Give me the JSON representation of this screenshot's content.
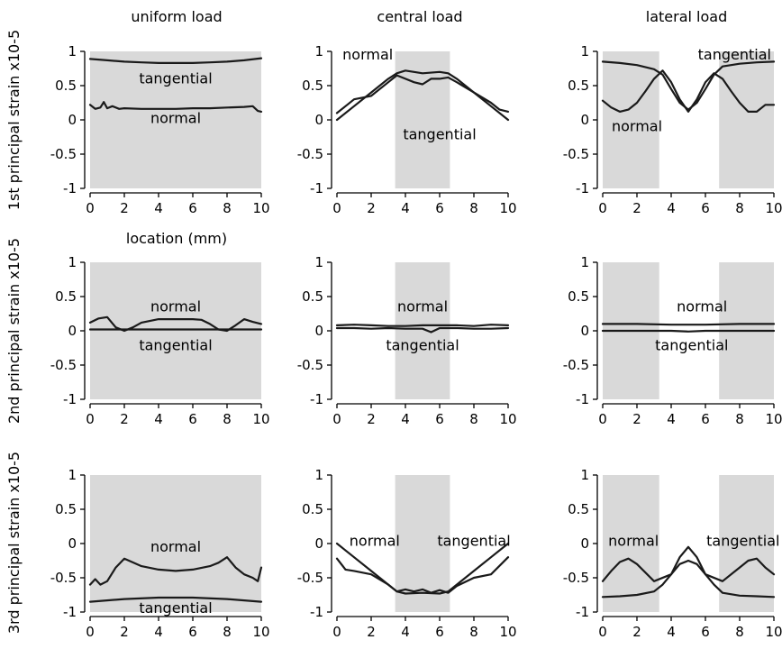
{
  "figure": {
    "column_titles": [
      "uniform load",
      "central load",
      "lateral load"
    ],
    "row_ylabels": [
      "1st principal strain x10-5",
      "2nd  principal strain x10-5",
      "3rd  principal strain x10-5"
    ],
    "xlabel_first_panel": "location (mm)"
  },
  "chart_data": [
    {
      "type": "line",
      "row": 0,
      "col": 0,
      "xlim": [
        0,
        10
      ],
      "ylim": [
        -1,
        1
      ],
      "xticks": [
        0,
        2,
        4,
        6,
        8,
        10
      ],
      "yticks": [
        -1,
        -0.5,
        0,
        0.5,
        1
      ],
      "shaded_regions": [
        [
          0,
          10
        ]
      ],
      "series": [
        {
          "name": "tangential",
          "x": [
            0,
            1,
            2,
            3,
            4,
            5,
            6,
            7,
            8,
            9,
            10
          ],
          "y": [
            0.89,
            0.87,
            0.85,
            0.84,
            0.83,
            0.83,
            0.83,
            0.84,
            0.85,
            0.87,
            0.9
          ]
        },
        {
          "name": "normal",
          "x": [
            0,
            0.3,
            0.6,
            0.8,
            1.0,
            1.3,
            1.7,
            2,
            3,
            4,
            5,
            6,
            7,
            8,
            9,
            9.5,
            9.8,
            10
          ],
          "y": [
            0.22,
            0.16,
            0.18,
            0.26,
            0.17,
            0.2,
            0.16,
            0.17,
            0.16,
            0.16,
            0.16,
            0.17,
            0.17,
            0.18,
            0.19,
            0.2,
            0.13,
            0.12
          ]
        }
      ],
      "labels": [
        {
          "text": "tangential",
          "x": 5,
          "y": 0.6
        },
        {
          "text": "normal",
          "x": 5,
          "y": 0.02
        }
      ]
    },
    {
      "type": "line",
      "row": 0,
      "col": 1,
      "xlim": [
        0,
        10
      ],
      "ylim": [
        -1,
        1
      ],
      "xticks": [
        0,
        2,
        4,
        6,
        8,
        10
      ],
      "yticks": [
        -1,
        -0.5,
        0,
        0.5,
        1
      ],
      "shaded_regions": [
        [
          3.4,
          6.6
        ]
      ],
      "series": [
        {
          "name": "normal",
          "x": [
            0,
            0.5,
            1,
            2,
            3,
            3.5,
            4,
            4.5,
            5,
            5.5,
            6,
            6.5,
            7,
            8,
            9,
            9.5,
            10
          ],
          "y": [
            0.1,
            0.2,
            0.3,
            0.35,
            0.55,
            0.65,
            0.6,
            0.55,
            0.52,
            0.6,
            0.6,
            0.62,
            0.55,
            0.4,
            0.25,
            0.15,
            0.12
          ]
        },
        {
          "name": "tangential",
          "x": [
            0,
            1,
            2,
            3,
            3.5,
            4,
            5,
            6,
            6.5,
            7,
            8,
            9,
            10
          ],
          "y": [
            0,
            0.2,
            0.4,
            0.6,
            0.68,
            0.72,
            0.68,
            0.7,
            0.68,
            0.6,
            0.4,
            0.2,
            0
          ]
        }
      ],
      "labels": [
        {
          "text": "normal",
          "x": 1.8,
          "y": 0.95
        },
        {
          "text": "tangential",
          "x": 6,
          "y": -0.22
        }
      ]
    },
    {
      "type": "line",
      "row": 0,
      "col": 2,
      "xlim": [
        0,
        10
      ],
      "ylim": [
        -1,
        1
      ],
      "xticks": [
        0,
        2,
        4,
        6,
        8,
        10
      ],
      "yticks": [
        -1,
        -0.5,
        0,
        0.5,
        1
      ],
      "shaded_regions": [
        [
          0,
          3.3
        ],
        [
          6.8,
          10
        ]
      ],
      "series": [
        {
          "name": "tangential",
          "x": [
            0,
            1,
            2,
            3,
            3.5,
            4,
            4.5,
            5,
            5.5,
            6,
            6.5,
            7,
            8,
            9,
            10
          ],
          "y": [
            0.85,
            0.83,
            0.8,
            0.74,
            0.66,
            0.45,
            0.25,
            0.15,
            0.25,
            0.45,
            0.66,
            0.78,
            0.82,
            0.84,
            0.85
          ]
        },
        {
          "name": "normal",
          "x": [
            0,
            0.5,
            1,
            1.5,
            2,
            2.5,
            3,
            3.5,
            4,
            4.5,
            5,
            5.5,
            6,
            6.5,
            7,
            7.5,
            8,
            8.5,
            9,
            9.5,
            10
          ],
          "y": [
            0.28,
            0.18,
            0.12,
            0.15,
            0.25,
            0.42,
            0.6,
            0.72,
            0.55,
            0.3,
            0.12,
            0.3,
            0.55,
            0.68,
            0.6,
            0.42,
            0.25,
            0.12,
            0.12,
            0.22,
            0.22
          ]
        }
      ],
      "labels": [
        {
          "text": "tangential",
          "x": 7.7,
          "y": 0.95
        },
        {
          "text": "normal",
          "x": 2,
          "y": -0.1
        }
      ]
    },
    {
      "type": "line",
      "row": 1,
      "col": 0,
      "xlim": [
        0,
        10
      ],
      "ylim": [
        -1,
        1
      ],
      "xticks": [
        0,
        2,
        4,
        6,
        8,
        10
      ],
      "yticks": [
        -1,
        -0.5,
        0,
        0.5,
        1
      ],
      "shaded_regions": [
        [
          0,
          10
        ]
      ],
      "series": [
        {
          "name": "normal",
          "x": [
            0,
            0.5,
            1,
            1.5,
            2,
            2.5,
            3,
            4,
            5,
            6,
            6.5,
            7,
            7.5,
            8,
            8.5,
            9,
            9.5,
            10
          ],
          "y": [
            0.12,
            0.18,
            0.2,
            0.05,
            0.0,
            0.05,
            0.12,
            0.17,
            0.17,
            0.17,
            0.16,
            0.1,
            0.02,
            0.0,
            0.08,
            0.17,
            0.13,
            0.1
          ]
        },
        {
          "name": "tangential",
          "x": [
            0,
            2,
            4,
            6,
            8,
            10
          ],
          "y": [
            0.02,
            0.02,
            0.02,
            0.02,
            0.02,
            0.02
          ]
        }
      ],
      "labels": [
        {
          "text": "normal",
          "x": 5,
          "y": 0.35
        },
        {
          "text": "tangential",
          "x": 5,
          "y": -0.22
        }
      ]
    },
    {
      "type": "line",
      "row": 1,
      "col": 1,
      "xlim": [
        0,
        10
      ],
      "ylim": [
        -1,
        1
      ],
      "xticks": [
        0,
        2,
        4,
        6,
        8,
        10
      ],
      "yticks": [
        -1,
        -0.5,
        0,
        0.5,
        1
      ],
      "shaded_regions": [
        [
          3.4,
          6.6
        ]
      ],
      "series": [
        {
          "name": "normal",
          "x": [
            0,
            1,
            2,
            3,
            4,
            5,
            6,
            7,
            8,
            9,
            10
          ],
          "y": [
            0.08,
            0.09,
            0.08,
            0.07,
            0.07,
            0.08,
            0.08,
            0.08,
            0.07,
            0.09,
            0.08
          ]
        },
        {
          "name": "tangential",
          "x": [
            0,
            1,
            2,
            3,
            4,
            5,
            5.5,
            6,
            7,
            8,
            9,
            10
          ],
          "y": [
            0.04,
            0.04,
            0.03,
            0.04,
            0.03,
            0.03,
            -0.02,
            0.04,
            0.04,
            0.03,
            0.03,
            0.04
          ]
        }
      ],
      "labels": [
        {
          "text": "normal",
          "x": 5,
          "y": 0.35
        },
        {
          "text": "tangential",
          "x": 5,
          "y": -0.22
        }
      ]
    },
    {
      "type": "line",
      "row": 1,
      "col": 2,
      "xlim": [
        0,
        10
      ],
      "ylim": [
        -1,
        1
      ],
      "xticks": [
        0,
        2,
        4,
        6,
        8,
        10
      ],
      "yticks": [
        -1,
        -0.5,
        0,
        0.5,
        1
      ],
      "shaded_regions": [
        [
          0,
          3.3
        ],
        [
          6.8,
          10
        ]
      ],
      "series": [
        {
          "name": "normal",
          "x": [
            0,
            2,
            4,
            6,
            8,
            10
          ],
          "y": [
            0.1,
            0.1,
            0.09,
            0.09,
            0.1,
            0.1
          ]
        },
        {
          "name": "tangential",
          "x": [
            0,
            2,
            4,
            5,
            6,
            8,
            10
          ],
          "y": [
            0.0,
            0.0,
            0.0,
            -0.01,
            0.0,
            0.0,
            0.0
          ]
        }
      ],
      "labels": [
        {
          "text": "normal",
          "x": 5.8,
          "y": 0.35
        },
        {
          "text": "tangential",
          "x": 5.2,
          "y": -0.22
        }
      ]
    },
    {
      "type": "line",
      "row": 2,
      "col": 0,
      "xlim": [
        0,
        10
      ],
      "ylim": [
        -1,
        1
      ],
      "xticks": [
        0,
        2,
        4,
        6,
        8,
        10
      ],
      "yticks": [
        -1,
        -0.5,
        0,
        0.5,
        1
      ],
      "shaded_regions": [
        [
          0,
          10
        ]
      ],
      "series": [
        {
          "name": "normal",
          "x": [
            0,
            0.3,
            0.6,
            1,
            1.5,
            2,
            3,
            4,
            5,
            6,
            7,
            7.5,
            8,
            8.5,
            9,
            9.5,
            9.8,
            10
          ],
          "y": [
            -0.6,
            -0.52,
            -0.6,
            -0.55,
            -0.35,
            -0.22,
            -0.33,
            -0.38,
            -0.4,
            -0.38,
            -0.33,
            -0.28,
            -0.2,
            -0.35,
            -0.45,
            -0.5,
            -0.55,
            -0.35
          ]
        },
        {
          "name": "tangential",
          "x": [
            0,
            2,
            4,
            6,
            8,
            10
          ],
          "y": [
            -0.85,
            -0.81,
            -0.79,
            -0.79,
            -0.81,
            -0.85
          ]
        }
      ],
      "labels": [
        {
          "text": "normal",
          "x": 5,
          "y": -0.05
        },
        {
          "text": "tangential",
          "x": 5,
          "y": -0.95
        }
      ]
    },
    {
      "type": "line",
      "row": 2,
      "col": 1,
      "xlim": [
        0,
        10
      ],
      "ylim": [
        -1,
        1
      ],
      "xticks": [
        0,
        2,
        4,
        6,
        8,
        10
      ],
      "yticks": [
        -1,
        -0.5,
        0,
        0.5,
        1
      ],
      "shaded_regions": [
        [
          3.4,
          6.6
        ]
      ],
      "series": [
        {
          "name": "normal",
          "x": [
            0,
            0.5,
            1,
            2,
            3,
            3.5,
            4,
            4.5,
            5,
            5.5,
            6,
            6.5,
            7,
            8,
            9,
            10
          ],
          "y": [
            -0.22,
            -0.38,
            -0.4,
            -0.45,
            -0.6,
            -0.7,
            -0.67,
            -0.7,
            -0.67,
            -0.72,
            -0.68,
            -0.72,
            -0.62,
            -0.5,
            -0.45,
            -0.2
          ]
        },
        {
          "name": "tangential",
          "x": [
            0,
            1,
            2,
            3,
            3.5,
            4,
            5,
            6,
            6.5,
            7,
            8,
            9,
            10
          ],
          "y": [
            0,
            -0.2,
            -0.4,
            -0.6,
            -0.7,
            -0.73,
            -0.72,
            -0.73,
            -0.7,
            -0.6,
            -0.4,
            -0.2,
            0
          ]
        }
      ],
      "labels": [
        {
          "text": "normal",
          "x": 2.2,
          "y": 0.03
        },
        {
          "text": "tangential",
          "x": 8,
          "y": 0.03
        }
      ]
    },
    {
      "type": "line",
      "row": 2,
      "col": 2,
      "xlim": [
        0,
        10
      ],
      "ylim": [
        -1,
        1
      ],
      "xticks": [
        0,
        2,
        4,
        6,
        8,
        10
      ],
      "yticks": [
        -1,
        -0.5,
        0,
        0.5,
        1
      ],
      "shaded_regions": [
        [
          0,
          3.3
        ],
        [
          6.8,
          10
        ]
      ],
      "series": [
        {
          "name": "normal",
          "x": [
            0,
            0.5,
            1,
            1.5,
            2,
            3,
            4,
            4.5,
            5,
            5.5,
            6,
            7,
            8,
            8.5,
            9,
            9.5,
            10
          ],
          "y": [
            -0.55,
            -0.4,
            -0.27,
            -0.22,
            -0.3,
            -0.55,
            -0.45,
            -0.2,
            -0.05,
            -0.2,
            -0.45,
            -0.55,
            -0.35,
            -0.25,
            -0.22,
            -0.35,
            -0.45
          ]
        },
        {
          "name": "tangential",
          "x": [
            0,
            1,
            2,
            3,
            3.5,
            4,
            4.5,
            5,
            5.5,
            6,
            6.5,
            7,
            8,
            9,
            10
          ],
          "y": [
            -0.78,
            -0.77,
            -0.75,
            -0.7,
            -0.6,
            -0.45,
            -0.3,
            -0.25,
            -0.3,
            -0.45,
            -0.6,
            -0.72,
            -0.76,
            -0.77,
            -0.78
          ]
        }
      ],
      "labels": [
        {
          "text": "normal",
          "x": 1.8,
          "y": 0.03
        },
        {
          "text": "tangential",
          "x": 8.2,
          "y": 0.03
        }
      ]
    }
  ]
}
